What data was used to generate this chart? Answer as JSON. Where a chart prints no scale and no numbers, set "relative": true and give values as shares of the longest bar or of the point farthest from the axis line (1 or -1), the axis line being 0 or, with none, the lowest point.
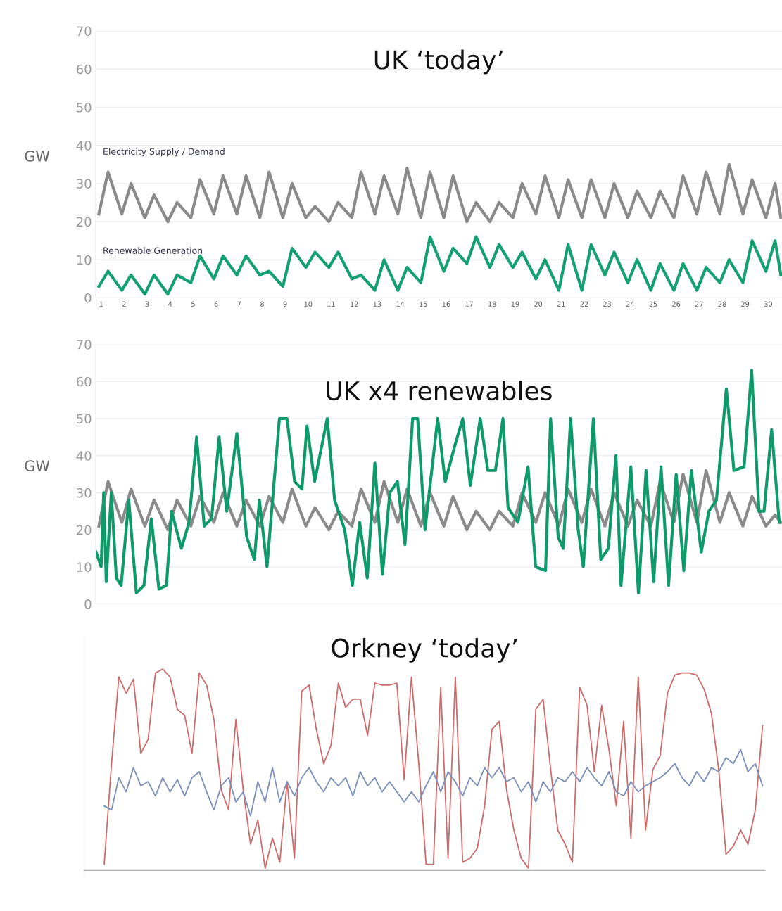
{
  "chart_data": [
    {
      "type": "line",
      "title": "UK ‘today’",
      "ylabel": "GW",
      "ylim": [
        0,
        70
      ],
      "yticks": [
        0,
        10,
        20,
        30,
        40,
        50,
        60,
        70
      ],
      "xlim": [
        0.75,
        30.6
      ],
      "xticks": [
        1,
        2,
        3,
        4,
        5,
        6,
        7,
        8,
        9,
        10,
        11,
        12,
        13,
        14,
        15,
        16,
        17,
        18,
        19,
        20,
        21,
        22,
        23,
        24,
        25,
        26,
        27,
        28,
        29,
        30
      ],
      "grid": "y",
      "series": [
        {
          "name": "Electricity Supply / Demand",
          "color": "#8a8a8a",
          "x": [
            0.9,
            1.3,
            1.9,
            2.3,
            2.9,
            3.3,
            3.9,
            4.3,
            4.9,
            5.3,
            5.9,
            6.3,
            6.9,
            7.3,
            7.9,
            8.3,
            8.9,
            9.3,
            9.9,
            10.3,
            10.9,
            11.3,
            11.9,
            12.3,
            12.9,
            13.3,
            13.9,
            14.3,
            14.9,
            15.3,
            15.9,
            16.3,
            16.9,
            17.3,
            17.9,
            18.3,
            18.9,
            19.3,
            19.9,
            20.3,
            20.9,
            21.3,
            21.9,
            22.3,
            22.9,
            23.3,
            23.9,
            24.3,
            24.9,
            25.3,
            25.9,
            26.3,
            26.9,
            27.3,
            27.9,
            28.3,
            28.9,
            29.3,
            29.9,
            30.3,
            30.55
          ],
          "values": [
            22,
            33,
            22,
            30,
            21,
            27,
            20,
            25,
            21,
            31,
            22,
            32,
            22,
            32,
            21,
            33,
            21,
            30,
            21,
            24,
            20,
            25,
            21,
            33,
            22,
            32,
            22,
            34,
            21,
            33,
            21,
            32,
            20,
            25,
            20,
            25,
            21,
            30,
            22,
            32,
            21,
            31,
            21,
            31,
            21,
            30,
            21,
            28,
            21,
            28,
            21,
            32,
            22,
            33,
            22,
            35,
            22,
            31,
            21,
            30,
            21
          ]
        },
        {
          "name": "Renewable Generation",
          "color": "#14a070",
          "x": [
            0.9,
            1.3,
            1.9,
            2.3,
            2.9,
            3.3,
            3.9,
            4.3,
            4.9,
            5.3,
            5.9,
            6.3,
            6.9,
            7.3,
            7.9,
            8.3,
            8.9,
            9.3,
            9.9,
            10.3,
            10.9,
            11.3,
            11.9,
            12.3,
            12.9,
            13.3,
            13.9,
            14.3,
            14.9,
            15.3,
            15.9,
            16.3,
            16.9,
            17.3,
            17.9,
            18.3,
            18.9,
            19.3,
            19.9,
            20.3,
            20.9,
            21.3,
            21.9,
            22.3,
            22.9,
            23.3,
            23.9,
            24.3,
            24.9,
            25.3,
            25.9,
            26.3,
            26.9,
            27.3,
            27.9,
            28.3,
            28.9,
            29.3,
            29.9,
            30.3,
            30.55
          ],
          "values": [
            3,
            7,
            2,
            6,
            1,
            6,
            1,
            6,
            4,
            11,
            5,
            11,
            6,
            11,
            6,
            7,
            3,
            13,
            8,
            12,
            8,
            12,
            5,
            6,
            2,
            10,
            2,
            8,
            4,
            16,
            7,
            13,
            9,
            16,
            8,
            14,
            8,
            12,
            5,
            10,
            2,
            14,
            2,
            14,
            6,
            12,
            4,
            10,
            2,
            9,
            2,
            9,
            2,
            8,
            4,
            10,
            4,
            15,
            7,
            15,
            6
          ]
        }
      ]
    },
    {
      "type": "line",
      "title": "UK x4 renewables",
      "ylabel": "GW",
      "ylim": [
        0,
        70
      ],
      "yticks": [
        0,
        10,
        20,
        30,
        40,
        50,
        60,
        70
      ],
      "xlim": [
        0.75,
        30.6
      ],
      "grid": "y",
      "tick_labels": "y",
      "series": [
        {
          "color": "#8a8a8a",
          "x": [
            0.9,
            1.3,
            1.9,
            2.3,
            2.9,
            3.3,
            3.9,
            4.3,
            4.9,
            5.3,
            5.9,
            6.3,
            6.9,
            7.3,
            7.9,
            8.3,
            8.9,
            9.3,
            9.9,
            10.3,
            10.9,
            11.3,
            11.9,
            12.3,
            12.9,
            13.3,
            13.9,
            14.3,
            14.9,
            15.3,
            15.9,
            16.3,
            16.9,
            17.3,
            17.9,
            18.3,
            18.9,
            19.3,
            19.9,
            20.3,
            20.9,
            21.3,
            21.9,
            22.3,
            22.9,
            23.3,
            23.9,
            24.3,
            24.9,
            25.3,
            25.9,
            26.3,
            26.9,
            27.3,
            27.9,
            28.3,
            28.9,
            29.3,
            29.9,
            30.3,
            30.55
          ],
          "values": [
            21,
            33,
            22,
            31,
            21,
            28,
            20,
            28,
            21,
            29,
            22,
            30,
            21,
            28,
            21,
            29,
            22,
            31,
            21,
            26,
            20,
            25,
            21,
            31,
            22,
            33,
            22,
            31,
            21,
            30,
            21,
            29,
            20,
            25,
            20,
            25,
            21,
            30,
            22,
            30,
            21,
            31,
            22,
            31,
            21,
            30,
            21,
            28,
            21,
            33,
            22,
            35,
            22,
            36,
            22,
            30,
            21,
            29,
            21,
            24,
            22
          ]
        },
        {
          "color": "#0f9a6a",
          "x": [
            0.78,
            1.0,
            1.11,
            1.22,
            1.44,
            1.66,
            1.87,
            2.2,
            2.53,
            2.86,
            3.18,
            3.51,
            3.84,
            4.06,
            4.49,
            4.82,
            5.15,
            5.48,
            5.8,
            6.13,
            6.46,
            6.9,
            7.33,
            7.66,
            7.88,
            8.21,
            8.75,
            9.08,
            9.41,
            9.73,
            9.95,
            10.28,
            10.83,
            11.15,
            11.59,
            11.92,
            12.24,
            12.57,
            12.9,
            13.23,
            13.55,
            13.88,
            14.21,
            14.54,
            14.76,
            15.08,
            15.63,
            15.96,
            16.39,
            16.72,
            17.05,
            17.48,
            17.81,
            18.14,
            18.47,
            18.69,
            19.12,
            19.56,
            19.89,
            20.32,
            20.54,
            20.87,
            21.09,
            21.41,
            21.74,
            21.96,
            22.4,
            22.72,
            23.05,
            23.38,
            23.6,
            24.03,
            24.36,
            24.69,
            25.02,
            25.34,
            25.67,
            26.0,
            26.33,
            26.66,
            27.09,
            27.42,
            27.75,
            28.18,
            28.51,
            28.95,
            29.28,
            29.6,
            29.82,
            30.15,
            30.48
          ],
          "values": [
            14,
            10,
            30,
            6,
            30,
            7,
            5,
            28,
            3,
            5,
            23,
            4,
            5,
            25,
            15,
            22,
            45,
            21,
            23,
            45,
            25,
            46,
            18,
            12,
            28,
            10,
            50,
            50,
            33,
            31,
            48,
            33,
            50,
            28,
            20,
            5,
            22,
            7,
            38,
            8,
            30,
            33,
            16,
            50,
            50,
            20,
            50,
            33,
            43,
            50,
            32,
            50,
            36,
            36,
            50,
            26,
            22,
            37,
            10,
            9,
            50,
            18,
            15,
            50,
            20,
            10,
            50,
            12,
            15,
            40,
            5,
            37,
            3,
            36,
            6,
            37,
            5,
            35,
            9,
            36,
            14,
            25,
            28,
            58,
            36,
            37,
            63,
            25,
            25,
            47,
            22
          ]
        }
      ]
    },
    {
      "type": "line",
      "title": "Orkney ‘today’",
      "relative": true,
      "categories": [
        null,
        null,
        null,
        null,
        null,
        null,
        null,
        null,
        null,
        null,
        null,
        null,
        null,
        null,
        null,
        null,
        null,
        null,
        null,
        null,
        null,
        null,
        null,
        null,
        null,
        null,
        null,
        null,
        null,
        null,
        null,
        null,
        null,
        null,
        null,
        null,
        null,
        null,
        null,
        null,
        null,
        null,
        null,
        null,
        null,
        null,
        null,
        null,
        null,
        null,
        null,
        null,
        null,
        null,
        null,
        null,
        null,
        null,
        null,
        null,
        null,
        null,
        null,
        null,
        null,
        null,
        null,
        null,
        null,
        null,
        null,
        null,
        null,
        null,
        null,
        null,
        null,
        null,
        null,
        null,
        null,
        null,
        null,
        null,
        null,
        null,
        null,
        null,
        null,
        null,
        null
      ],
      "series": [
        {
          "color": "#d06a6a",
          "values": [
            0.03,
            0.53,
            0.96,
            0.88,
            0.95,
            0.58,
            0.65,
            0.98,
            1.0,
            0.96,
            0.8,
            0.77,
            0.58,
            0.98,
            0.92,
            0.75,
            0.4,
            0.3,
            0.75,
            0.4,
            0.13,
            0.25,
            0.01,
            0.16,
            0.04,
            0.44,
            0.06,
            0.89,
            0.92,
            0.7,
            0.53,
            0.62,
            0.93,
            0.81,
            0.85,
            0.85,
            0.67,
            0.93,
            0.92,
            0.92,
            0.93,
            0.45,
            0.96,
            0.53,
            0.03,
            0.03,
            0.91,
            0.06,
            0.96,
            0.04,
            0.06,
            0.11,
            0.32,
            0.7,
            0.74,
            0.4,
            0.2,
            0.06,
            0.01,
            0.8,
            0.85,
            0.51,
            0.2,
            0.13,
            0.04,
            0.91,
            0.82,
            0.49,
            0.82,
            0.6,
            0.32,
            0.74,
            0.16,
            0.96,
            0.2,
            0.5,
            0.57,
            0.88,
            0.97,
            0.98,
            0.98,
            0.97,
            0.9,
            0.78,
            0.5,
            0.08,
            0.12,
            0.2,
            0.13,
            0.3,
            0.72
          ]
        },
        {
          "color": "#7b8fb8",
          "values": [
            0.32,
            0.3,
            0.46,
            0.39,
            0.51,
            0.42,
            0.44,
            0.37,
            0.46,
            0.39,
            0.45,
            0.37,
            0.46,
            0.49,
            0.39,
            0.3,
            0.42,
            0.46,
            0.34,
            0.39,
            0.27,
            0.44,
            0.34,
            0.51,
            0.34,
            0.44,
            0.37,
            0.46,
            0.51,
            0.44,
            0.39,
            0.46,
            0.42,
            0.46,
            0.37,
            0.49,
            0.42,
            0.46,
            0.39,
            0.44,
            0.39,
            0.34,
            0.39,
            0.34,
            0.42,
            0.49,
            0.39,
            0.49,
            0.44,
            0.37,
            0.46,
            0.42,
            0.51,
            0.46,
            0.51,
            0.44,
            0.46,
            0.39,
            0.44,
            0.34,
            0.44,
            0.39,
            0.46,
            0.44,
            0.49,
            0.44,
            0.51,
            0.46,
            0.42,
            0.49,
            0.39,
            0.37,
            0.44,
            0.39,
            0.42,
            0.44,
            0.46,
            0.49,
            0.53,
            0.46,
            0.42,
            0.49,
            0.44,
            0.51,
            0.49,
            0.56,
            0.53,
            0.6,
            0.49,
            0.53,
            0.42
          ]
        }
      ]
    }
  ]
}
